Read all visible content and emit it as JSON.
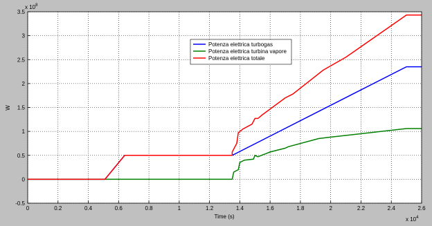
{
  "chart_data": {
    "type": "line",
    "xlabel": "Time (s)",
    "ylabel": "W",
    "x_multiplier": {
      "base": "x 10",
      "exponent": "4"
    },
    "y_multiplier": {
      "base": "x 10",
      "exponent": "8"
    },
    "xlim": [
      0,
      2.6
    ],
    "ylim": [
      -0.5,
      3.5
    ],
    "xticks": [
      0,
      0.2,
      0.4,
      0.6,
      0.8,
      1,
      1.2,
      1.4,
      1.6,
      1.8,
      2,
      2.2,
      2.4,
      2.6
    ],
    "yticks": [
      -0.5,
      0,
      0.5,
      1,
      1.5,
      2,
      2.5,
      3,
      3.5
    ],
    "grid": true,
    "legend": "upper center",
    "series": [
      {
        "name": "Potenza elettrica turbogas",
        "color": "#0000ff",
        "x": [
          0,
          0.51,
          0.64,
          1.35,
          2.5,
          2.6
        ],
        "values": [
          0,
          0,
          0.5,
          0.5,
          2.35,
          2.35
        ]
      },
      {
        "name": "Potenza elettrica turbina vapore",
        "color": "#008000",
        "x": [
          0,
          1.35,
          1.36,
          1.39,
          1.4,
          1.43,
          1.49,
          1.5,
          1.52,
          1.6,
          1.7,
          1.72,
          1.92,
          2.0,
          2.5,
          2.6
        ],
        "values": [
          0,
          0,
          0.15,
          0.2,
          0.35,
          0.4,
          0.42,
          0.5,
          0.47,
          0.57,
          0.65,
          0.68,
          0.85,
          0.88,
          1.06,
          1.06
        ]
      },
      {
        "name": "Potenza elettrica totale",
        "color": "#ff0000",
        "x": [
          0,
          0.51,
          0.64,
          1.35,
          1.35,
          1.38,
          1.39,
          1.42,
          1.48,
          1.5,
          1.52,
          1.55,
          1.7,
          1.75,
          1.95,
          2.1,
          2.5,
          2.6
        ],
        "values": [
          0,
          0,
          0.5,
          0.5,
          0.57,
          0.75,
          0.97,
          1.05,
          1.15,
          1.27,
          1.27,
          1.35,
          1.7,
          1.78,
          2.28,
          2.55,
          3.43,
          3.43
        ]
      }
    ]
  }
}
